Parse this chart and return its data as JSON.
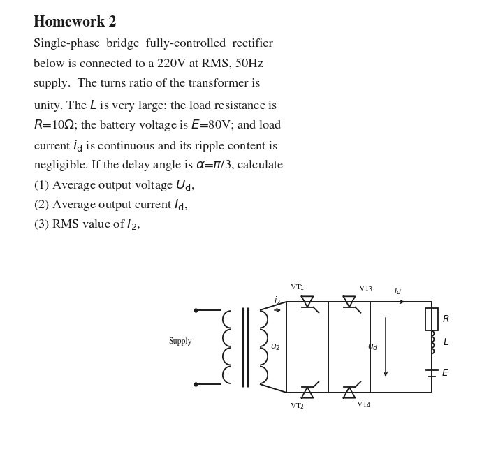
{
  "title": "Homework 2",
  "bg_color": "#ffffff",
  "text_color": "#1a1a1a",
  "font_size": 13.2,
  "title_font_size": 15.5,
  "circuit": {
    "supply_label": "Supply",
    "labels": {
      "i2": "$i_2$",
      "u2": "$u_2$",
      "id": "$i_d$",
      "ud": "$u_d$",
      "R": "$R$",
      "L": "$L$",
      "E": "$E$",
      "VT1": "VT$_1$",
      "VT2": "VT$_2$",
      "VT3": "VT$_3$",
      "VT4": "VT$_4$"
    }
  }
}
